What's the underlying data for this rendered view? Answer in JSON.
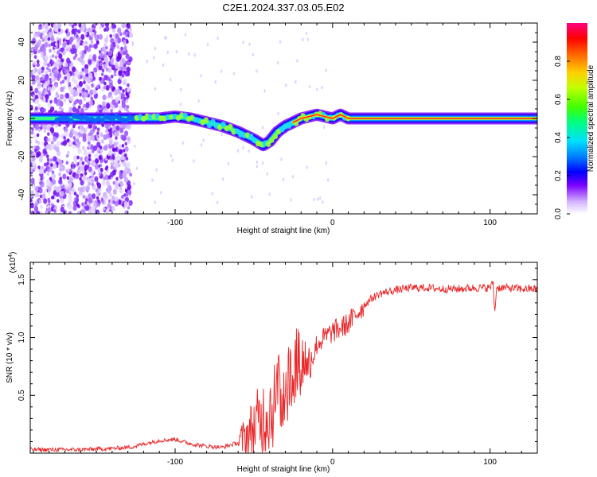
{
  "title": "C2E1.2024.337.03.05.E02",
  "chart_data": [
    {
      "type": "heatmap",
      "xlabel": "Height of straight line (km)",
      "ylabel": "Frequency (Hz)",
      "xlim": [
        -192,
        130
      ],
      "ylim": [
        -50,
        50
      ],
      "x_ticks": [
        -100,
        0,
        100
      ],
      "x_tick_labels": [
        "-100",
        "0",
        "100"
      ],
      "y_ticks": [
        -40,
        -20,
        0,
        20,
        40
      ],
      "y_tick_labels": [
        "-40",
        "-20",
        "0",
        "20",
        "40"
      ],
      "colorbar": {
        "label": "Normalized spectral amplitude",
        "range": [
          0,
          1
        ],
        "ticks": [
          0.0,
          0.2,
          0.4,
          0.6,
          0.8
        ],
        "tick_labels": [
          "0.0",
          "0.2",
          "0.4",
          "0.6",
          "0.8"
        ]
      },
      "ridge": {
        "x": [
          -192,
          -170,
          -150,
          -130,
          -110,
          -100,
          -90,
          -80,
          -70,
          -60,
          -50,
          -44,
          -40,
          -35,
          -30,
          -25,
          -20,
          -15,
          -10,
          -5,
          0,
          5,
          10,
          20,
          40,
          60,
          80,
          100,
          130
        ],
        "y": [
          0,
          0,
          0,
          0,
          0,
          1,
          0,
          -2,
          -4,
          -7,
          -11,
          -14,
          -12,
          -7,
          -4,
          -2,
          0,
          1,
          2,
          1,
          0,
          2,
          0,
          0,
          0,
          0,
          0,
          0,
          0
        ]
      }
    },
    {
      "type": "line",
      "xlabel": "Height of straight line (km)",
      "ylabel": "SNR (10 * v/v)",
      "y_multiplier": "(x10",
      "y_multiplier_exp": "4",
      "y_multiplier_close": ")",
      "xlim": [
        -192,
        130
      ],
      "ylim": [
        0,
        1.65
      ],
      "x_ticks": [
        -100,
        0,
        100
      ],
      "x_tick_labels": [
        "-100",
        "0",
        "100"
      ],
      "y_ticks": [
        0.5,
        1.0,
        1.5
      ],
      "y_tick_labels": [
        "0.5",
        "1.0",
        "1.5"
      ],
      "series": [
        {
          "color": "#e8282a",
          "x": [
            -192,
            -160,
            -140,
            -130,
            -125,
            -120,
            -110,
            -100,
            -95,
            -90,
            -80,
            -70,
            -60,
            -55,
            -50,
            -45,
            -40,
            -35,
            -30,
            -27,
            -25,
            -20,
            -15,
            -12,
            -10,
            -5,
            0,
            5,
            10,
            15,
            20,
            25,
            30,
            40,
            50,
            60,
            70,
            80,
            90,
            100,
            102,
            103,
            104,
            110,
            120,
            130
          ],
          "y": [
            0.03,
            0.03,
            0.04,
            0.05,
            0.06,
            0.08,
            0.11,
            0.12,
            0.1,
            0.08,
            0.06,
            0.05,
            0.09,
            0.15,
            0.22,
            0.3,
            0.38,
            0.46,
            0.55,
            0.65,
            0.75,
            0.78,
            0.8,
            0.86,
            0.94,
            1.0,
            1.05,
            1.08,
            1.12,
            1.2,
            1.28,
            1.34,
            1.38,
            1.41,
            1.43,
            1.43,
            1.42,
            1.42,
            1.43,
            1.43,
            1.48,
            1.2,
            1.43,
            1.43,
            1.42,
            1.42
          ]
        }
      ]
    }
  ]
}
